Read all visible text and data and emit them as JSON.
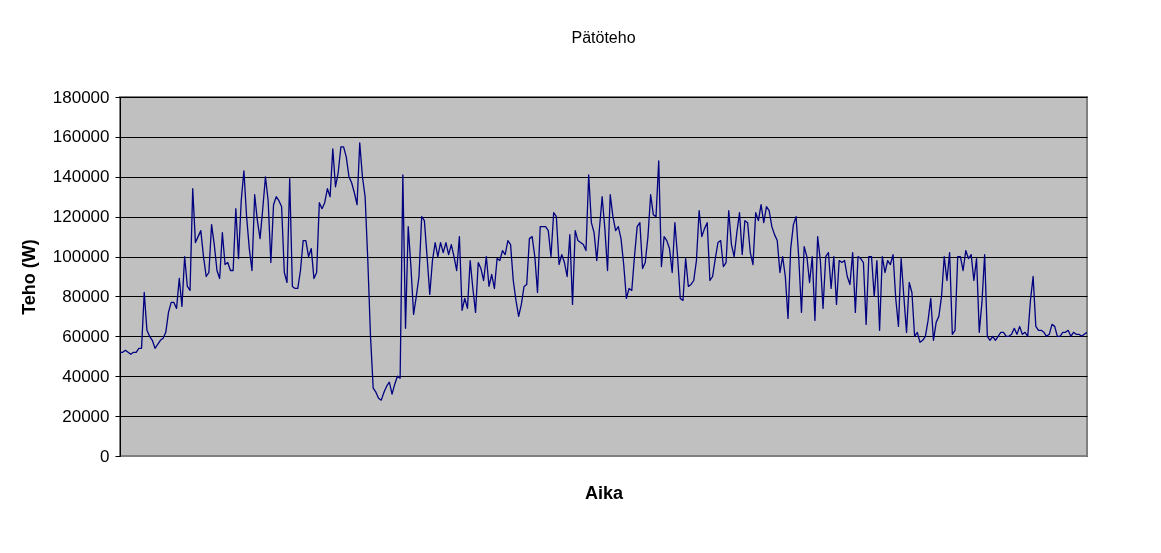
{
  "chart_data": {
    "type": "line",
    "title": "Pätöteho",
    "xlabel": "Aika",
    "ylabel": "Teho (W)",
    "categories": [
      null,
      null,
      null,
      null,
      null,
      null,
      null,
      null,
      null,
      null,
      null,
      null,
      null,
      null,
      null,
      null,
      null,
      null,
      null,
      null,
      null,
      null,
      null,
      null,
      null,
      null,
      null,
      null,
      null,
      null,
      null,
      null,
      null,
      null,
      null,
      null,
      null,
      null,
      null,
      null,
      null,
      null,
      null,
      null,
      null,
      null,
      null,
      null,
      null,
      null,
      null,
      null,
      null,
      null,
      null,
      null,
      null,
      null,
      null,
      null,
      null,
      null,
      null,
      null,
      null,
      null,
      null,
      null,
      null,
      null,
      null,
      null,
      null,
      null,
      null,
      null,
      null,
      null,
      null,
      null,
      null,
      null,
      null,
      null,
      null,
      null,
      null,
      null,
      null,
      null,
      null,
      null,
      null,
      null,
      null,
      null,
      null,
      null,
      null,
      null,
      null,
      null,
      null,
      null,
      null,
      null,
      null,
      null,
      null,
      null,
      null,
      null,
      null,
      null,
      null,
      null,
      null,
      null,
      null,
      null,
      null,
      null,
      null,
      null,
      null,
      null,
      null,
      null,
      null,
      null,
      null,
      null,
      null,
      null,
      null,
      null,
      null,
      null,
      null,
      null,
      null,
      null,
      null,
      null,
      null,
      null,
      null,
      null,
      null,
      null,
      null,
      null,
      null,
      null,
      null,
      null,
      null,
      null,
      null,
      null,
      null,
      null,
      null,
      null,
      null,
      null,
      null,
      null,
      null,
      null,
      null,
      null,
      null,
      null,
      null,
      null,
      null,
      null,
      null,
      null,
      null,
      null,
      null,
      null,
      null,
      null,
      null,
      null,
      null,
      null,
      null,
      null,
      null,
      null,
      null,
      null,
      null,
      null,
      null,
      null,
      null,
      null,
      null,
      null,
      null,
      null,
      null,
      null,
      null,
      null,
      null,
      null,
      null,
      null,
      null,
      null,
      null,
      null,
      null,
      null,
      null,
      null,
      null,
      null,
      null,
      null,
      null,
      null,
      null,
      null,
      null,
      null,
      null,
      null,
      null,
      null,
      null,
      null,
      null,
      null,
      null,
      null,
      null,
      null,
      null,
      null,
      null,
      null,
      null,
      null,
      null,
      null,
      null,
      null,
      null,
      null,
      null,
      null,
      null,
      null,
      null,
      null,
      null,
      null,
      null,
      null,
      null,
      null,
      null,
      null,
      null,
      null,
      null,
      null,
      null,
      null,
      null,
      null,
      null,
      null,
      null,
      null,
      null,
      null,
      null,
      null,
      null,
      null,
      null,
      null,
      null,
      null,
      null,
      null,
      null,
      null,
      null,
      null,
      null,
      null,
      null,
      null,
      null,
      null,
      null,
      null,
      null,
      null,
      null,
      null,
      null,
      null,
      null,
      null,
      null,
      null,
      null,
      null,
      null,
      null,
      null,
      null,
      null,
      null,
      null,
      null,
      null,
      null,
      null,
      null,
      null,
      null,
      null,
      null,
      null,
      null,
      null,
      null,
      null,
      null,
      null,
      null,
      null,
      null,
      null,
      null,
      null,
      null,
      null,
      null,
      null,
      null,
      null,
      null,
      null,
      null,
      null,
      null,
      null,
      null
    ],
    "series": [
      {
        "color": "#000080",
        "values": [
          52000,
          52000,
          53000,
          52000,
          51000,
          52000,
          52000,
          54000,
          54000,
          82000,
          63000,
          60000,
          58000,
          54000,
          56000,
          58000,
          59000,
          62000,
          72000,
          77000,
          77000,
          74000,
          89000,
          75000,
          100000,
          85000,
          83000,
          134000,
          107000,
          110000,
          113000,
          100000,
          90000,
          92000,
          116000,
          106000,
          93000,
          89000,
          112000,
          96000,
          97000,
          93000,
          93000,
          124000,
          99000,
          128000,
          143000,
          120000,
          104000,
          93000,
          131000,
          118000,
          109000,
          124000,
          140000,
          128000,
          97000,
          126000,
          130000,
          128000,
          125000,
          92000,
          87000,
          139000,
          85000,
          84000,
          84000,
          93000,
          108000,
          108000,
          100000,
          104000,
          89000,
          92000,
          127000,
          124000,
          127000,
          134000,
          130000,
          154000,
          135000,
          142000,
          155000,
          155000,
          150000,
          140000,
          137000,
          132000,
          126000,
          157000,
          140000,
          130000,
          98000,
          60000,
          34000,
          32000,
          29000,
          28000,
          32000,
          35000,
          37000,
          31000,
          36000,
          40000,
          39000,
          141000,
          64000,
          115000,
          95000,
          71000,
          80000,
          90000,
          120000,
          118000,
          100000,
          81000,
          98000,
          107000,
          100000,
          107000,
          102000,
          107000,
          101000,
          106000,
          100000,
          93000,
          110000,
          73000,
          79000,
          74000,
          98000,
          84000,
          72000,
          97000,
          94000,
          88000,
          100000,
          85000,
          91000,
          84000,
          99000,
          98000,
          103000,
          101000,
          108000,
          106000,
          88000,
          78000,
          70000,
          76000,
          85000,
          86000,
          109000,
          110000,
          100000,
          82000,
          115000,
          115000,
          115000,
          113000,
          100000,
          122000,
          120000,
          96000,
          101000,
          97000,
          90000,
          111000,
          76000,
          113000,
          108000,
          107000,
          106000,
          103000,
          141000,
          117000,
          112000,
          98000,
          114000,
          130000,
          114000,
          93000,
          131000,
          120000,
          113000,
          115000,
          109000,
          96000,
          79000,
          84000,
          83000,
          100000,
          115000,
          117000,
          94000,
          97000,
          110000,
          131000,
          121000,
          120000,
          148000,
          95000,
          110000,
          108000,
          104000,
          92000,
          117000,
          100000,
          79000,
          78000,
          99000,
          85000,
          86000,
          88000,
          98000,
          123000,
          110000,
          114000,
          117000,
          88000,
          90000,
          99000,
          107000,
          108000,
          95000,
          97000,
          123000,
          106000,
          100000,
          112000,
          122000,
          101000,
          118000,
          117000,
          102000,
          96000,
          122000,
          118000,
          126000,
          117000,
          125000,
          123000,
          115000,
          111000,
          108000,
          92000,
          100000,
          90000,
          69000,
          104000,
          116000,
          120000,
          99000,
          72000,
          105000,
          100000,
          87000,
          100000,
          68000,
          110000,
          98000,
          74000,
          100000,
          102000,
          84000,
          100000,
          76000,
          98000,
          97000,
          98000,
          90000,
          86000,
          102000,
          72000,
          100000,
          99000,
          97000,
          66000,
          100000,
          100000,
          80000,
          98000,
          63000,
          100000,
          92000,
          98000,
          96000,
          101000,
          79000,
          65000,
          99000,
          80000,
          62000,
          87000,
          82000,
          60000,
          62000,
          57000,
          58000,
          60000,
          68000,
          79000,
          58000,
          67000,
          70000,
          80000,
          100000,
          88000,
          102000,
          61000,
          63000,
          100000,
          100000,
          93000,
          103000,
          99000,
          101000,
          88000,
          99000,
          62000,
          77000,
          101000,
          60000,
          58000,
          60000,
          58000,
          60000,
          62000,
          62000,
          60000,
          60000,
          61000,
          64000,
          61000,
          65000,
          61000,
          62000,
          60000,
          78000,
          90000,
          65000,
          63000,
          63000,
          62000,
          60000,
          61000,
          66000,
          65000,
          60000,
          60000,
          62000,
          62000,
          63000,
          60000,
          62000,
          61000,
          61000,
          60000,
          61000,
          62000
        ]
      }
    ],
    "ylim": [
      0,
      180000
    ],
    "yticks": [
      0,
      20000,
      40000,
      60000,
      80000,
      100000,
      120000,
      140000,
      160000,
      180000
    ],
    "grid": "y",
    "marker": "none",
    "line_style": "solid",
    "tick_labels": "y"
  }
}
